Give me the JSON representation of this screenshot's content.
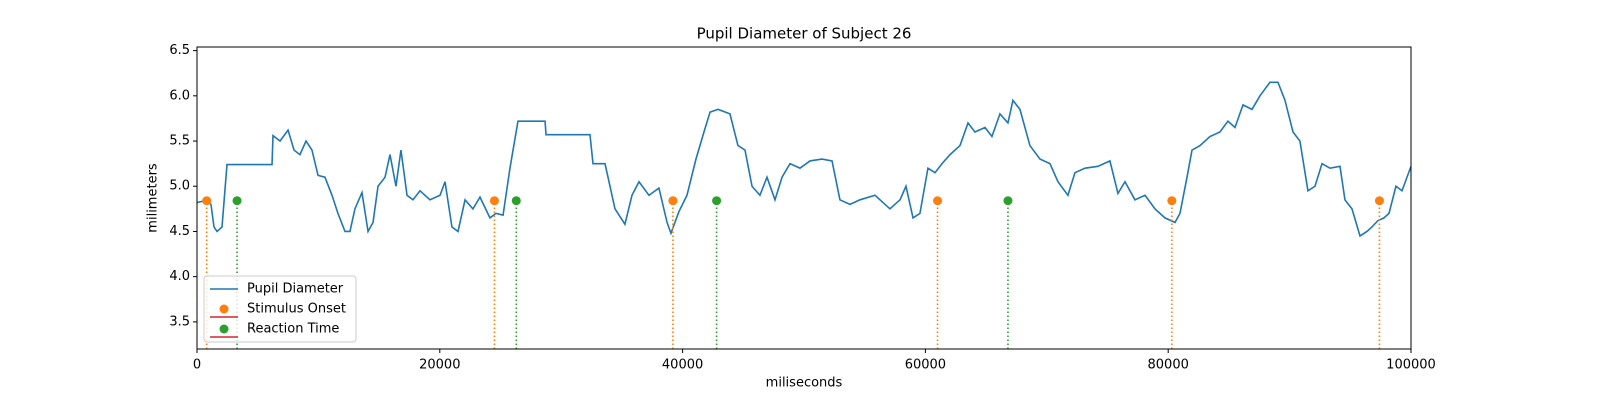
{
  "chart_data": {
    "type": "line",
    "title": "Pupil Diameter of Subject 26",
    "xlabel": "miliseconds",
    "ylabel": "milimeters",
    "xlim": [
      0,
      100000
    ],
    "ylim": [
      3.2,
      6.54
    ],
    "xticks": [
      0,
      20000,
      40000,
      60000,
      80000,
      100000
    ],
    "yticks": [
      3.5,
      4.0,
      4.5,
      5.0,
      5.5,
      6.0,
      6.5
    ],
    "legend": "lower left",
    "baseline_color": "#d62728",
    "series": [
      {
        "name": "Pupil Diameter",
        "color": "#1f77b4",
        "type": "line",
        "x": [
          0,
          660,
          1150,
          1400,
          1650,
          2060,
          2470,
          6180,
          6260,
          6840,
          7500,
          7990,
          8480,
          8980,
          9470,
          9970,
          10540,
          11120,
          11610,
          12190,
          12600,
          13010,
          13590,
          14090,
          14500,
          14910,
          15490,
          15900,
          16390,
          16800,
          17300,
          17790,
          18370,
          19190,
          20020,
          20430,
          21000,
          21500,
          22080,
          22730,
          23310,
          24130,
          24630,
          25210,
          25780,
          26440,
          28670,
          28750,
          32370,
          32620,
          33610,
          34430,
          35250,
          35830,
          36410,
          37230,
          38050,
          38720,
          39040,
          39700,
          40360,
          41100,
          41760,
          42260,
          42920,
          43900,
          44560,
          45140,
          45720,
          46370,
          46950,
          47610,
          48190,
          48850,
          49670,
          50490,
          51480,
          52310,
          52960,
          53790,
          54610,
          55850,
          57080,
          57910,
          58400,
          58980,
          59550,
          60210,
          60790,
          61370,
          62030,
          62850,
          63510,
          64080,
          64910,
          65480,
          66140,
          66800,
          67210,
          67790,
          68610,
          69440,
          70260,
          70920,
          71740,
          72320,
          73150,
          74220,
          75200,
          75860,
          76440,
          77260,
          78090,
          78910,
          79730,
          80560,
          80970,
          81550,
          81960,
          82620,
          83440,
          84260,
          84920,
          85500,
          86160,
          86900,
          87560,
          88380,
          89040,
          89620,
          90280,
          90850,
          91510,
          92090,
          92670,
          93330,
          94150,
          94560,
          95140,
          95800,
          96370,
          96780,
          97280,
          97770,
          98190,
          98760,
          99260,
          100000
        ],
        "values": [
          4.82,
          4.84,
          4.8,
          4.55,
          4.5,
          4.55,
          5.24,
          5.24,
          5.56,
          5.5,
          5.62,
          5.4,
          5.35,
          5.5,
          5.4,
          5.12,
          5.1,
          4.9,
          4.7,
          4.5,
          4.5,
          4.75,
          4.93,
          4.5,
          4.6,
          5.0,
          5.1,
          5.35,
          5.0,
          5.4,
          4.9,
          4.85,
          4.95,
          4.85,
          4.9,
          5.05,
          4.55,
          4.5,
          4.85,
          4.75,
          4.88,
          4.65,
          4.7,
          4.68,
          5.2,
          5.72,
          5.72,
          5.57,
          5.57,
          5.25,
          5.25,
          4.75,
          4.58,
          4.9,
          5.05,
          4.9,
          4.98,
          4.6,
          4.48,
          4.72,
          4.9,
          5.3,
          5.6,
          5.82,
          5.85,
          5.8,
          5.45,
          5.4,
          5.0,
          4.9,
          5.1,
          4.85,
          5.1,
          5.25,
          5.2,
          5.28,
          5.3,
          5.28,
          4.85,
          4.8,
          4.85,
          4.9,
          4.75,
          4.85,
          5.0,
          4.65,
          4.7,
          5.2,
          5.15,
          5.25,
          5.35,
          5.45,
          5.7,
          5.6,
          5.65,
          5.55,
          5.8,
          5.7,
          5.95,
          5.85,
          5.45,
          5.3,
          5.25,
          5.05,
          4.9,
          5.15,
          5.2,
          5.22,
          5.28,
          4.92,
          5.05,
          4.85,
          4.9,
          4.75,
          4.65,
          4.6,
          4.7,
          5.1,
          5.4,
          5.45,
          5.55,
          5.6,
          5.72,
          5.65,
          5.9,
          5.85,
          6.0,
          6.15,
          6.15,
          5.95,
          5.6,
          5.5,
          4.95,
          5.0,
          5.25,
          5.2,
          5.22,
          4.85,
          4.75,
          4.45,
          4.5,
          4.55,
          4.62,
          4.65,
          4.7,
          5.0,
          4.95,
          5.22
        ]
      },
      {
        "name": "Stimulus Onset",
        "color": "#ff7f0e",
        "type": "stem",
        "x": [
          800,
          24500,
          39200,
          61000,
          80300,
          97400
        ],
        "values": [
          4.84,
          4.84,
          4.84,
          4.84,
          4.84,
          4.84
        ]
      },
      {
        "name": "Reaction Time",
        "color": "#2ca02c",
        "type": "stem",
        "x": [
          3300,
          26300,
          42800,
          66800
        ],
        "values": [
          4.84,
          4.84,
          4.84,
          4.84
        ]
      }
    ]
  }
}
